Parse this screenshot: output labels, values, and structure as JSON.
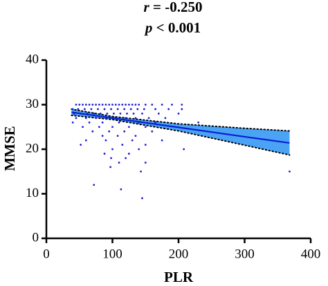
{
  "chart_data": {
    "type": "scatter",
    "annotations": [
      {
        "symbol": "r",
        "text": " = -0.250"
      },
      {
        "symbol": "p",
        "text": " < 0.001"
      }
    ],
    "x_label": "PLR",
    "y_label": "MMSE",
    "xlim": [
      0,
      400
    ],
    "xticks": [
      0,
      100,
      200,
      300,
      400
    ],
    "ylim": [
      0,
      40
    ],
    "yticks": [
      0,
      10,
      20,
      30,
      40
    ],
    "grid": false,
    "points": {
      "color": "#1c1cd6",
      "x": [
        45,
        50,
        55,
        60,
        65,
        70,
        75,
        80,
        85,
        90,
        95,
        100,
        105,
        110,
        115,
        120,
        125,
        130,
        135,
        140,
        150,
        160,
        175,
        190,
        205,
        40,
        48,
        58,
        68,
        78,
        88,
        98,
        108,
        118,
        128,
        138,
        148,
        165,
        185,
        205,
        42,
        52,
        62,
        72,
        82,
        92,
        102,
        112,
        122,
        132,
        145,
        170,
        200,
        45,
        60,
        75,
        90,
        105,
        120,
        135,
        155,
        180,
        40,
        65,
        85,
        110,
        140,
        165,
        230,
        55,
        80,
        100,
        125,
        150,
        70,
        95,
        118,
        160,
        85,
        108,
        135,
        60,
        90,
        130,
        175,
        52,
        115,
        150,
        100,
        140,
        208,
        88,
        125,
        98,
        120,
        110,
        150,
        97,
        143,
        368,
        72,
        113,
        145
      ],
      "values": [
        30,
        30,
        30,
        30,
        30,
        30,
        30,
        30,
        30,
        30,
        30,
        30,
        30,
        30,
        30,
        30,
        30,
        30,
        30,
        30,
        30,
        30,
        30,
        30,
        30,
        29,
        29,
        29,
        29,
        29,
        29,
        29,
        29,
        29,
        29,
        29,
        29,
        29,
        29,
        29,
        28,
        28,
        28,
        28,
        28,
        28,
        28,
        28,
        28,
        28,
        28,
        28,
        28,
        27,
        27,
        27,
        27,
        27,
        27,
        27,
        27,
        27,
        26,
        26,
        26,
        26,
        26,
        26,
        26,
        25,
        25,
        25,
        25,
        25,
        24,
        24,
        24,
        24,
        23,
        23,
        23,
        22,
        22,
        22,
        22,
        21,
        21,
        21,
        20,
        20,
        20,
        19,
        19,
        18,
        18,
        17,
        17,
        16,
        15,
        15,
        12,
        11,
        9
      ]
    },
    "fit": {
      "color": "#0a1fd0",
      "x": [
        38,
        100,
        200,
        300,
        368
      ],
      "values": [
        28.3,
        27.0,
        24.9,
        22.8,
        21.4
      ]
    },
    "band": {
      "color": "#4aa3f5",
      "x": [
        38,
        100,
        200,
        300,
        368
      ],
      "upper": [
        29.0,
        27.35,
        25.7,
        24.7,
        24.1
      ],
      "lower": [
        27.6,
        26.65,
        24.1,
        20.9,
        18.7
      ]
    }
  }
}
